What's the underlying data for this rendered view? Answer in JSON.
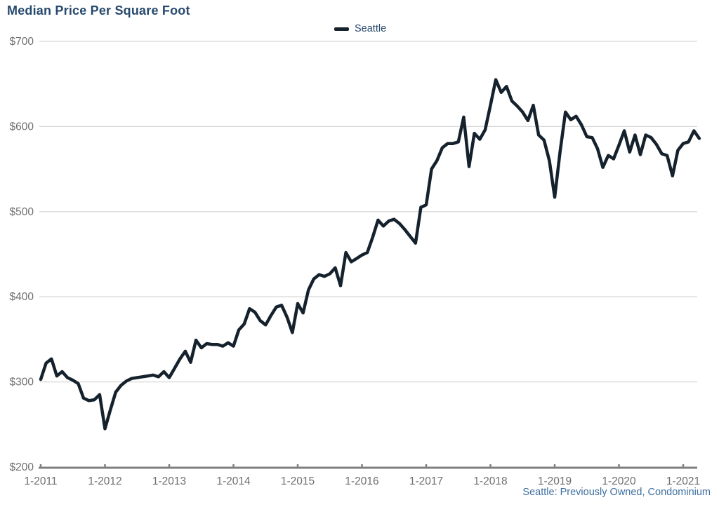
{
  "header": {
    "title": "Median Price Per Square Foot",
    "title_color": "#27496d"
  },
  "legend": {
    "label": "Seattle",
    "swatch_color": "#15222d",
    "text_color": "#27496d"
  },
  "footer": {
    "note": "Seattle: Previously Owned, Condominium",
    "color": "#3e6f9f"
  },
  "chart_data": {
    "type": "line",
    "title": "Median Price Per Square Foot",
    "series": [
      {
        "name": "Seattle",
        "start_month": "2011-01",
        "end_month": "2021-04",
        "frequency": "monthly",
        "values": [
          303,
          322,
          327,
          307,
          312,
          305,
          302,
          298,
          281,
          278,
          279,
          285,
          245,
          267,
          288,
          296,
          301,
          304,
          305,
          306,
          307,
          308,
          306,
          312,
          305,
          316,
          327,
          336,
          323,
          349,
          340,
          345,
          344,
          344,
          342,
          346,
          342,
          361,
          368,
          386,
          382,
          372,
          367,
          378,
          388,
          390,
          376,
          358,
          392,
          381,
          408,
          421,
          426,
          424,
          427,
          434,
          413,
          452,
          441,
          445,
          449,
          452,
          470,
          490,
          483,
          489,
          491,
          486,
          479,
          471,
          463,
          505,
          508,
          550,
          560,
          575,
          580,
          580,
          582,
          611,
          553,
          592,
          585,
          596,
          625,
          655,
          640,
          647,
          630,
          624,
          617,
          607,
          625,
          590,
          584,
          560,
          517,
          570,
          617,
          608,
          612,
          602,
          588,
          587,
          574,
          552,
          566,
          562,
          578,
          595,
          570,
          590,
          567,
          590,
          587,
          579,
          568,
          566,
          542,
          572,
          580,
          582,
          595,
          586
        ]
      }
    ],
    "x_tick_labels": [
      "1-2011",
      "1-2012",
      "1-2013",
      "1-2014",
      "1-2015",
      "1-2016",
      "1-2017",
      "1-2018",
      "1-2019",
      "1-2020",
      "1-2021"
    ],
    "y_tick_labels": [
      "$200",
      "$300",
      "$400",
      "$500",
      "$600",
      "$700"
    ],
    "y_ticks": [
      200,
      300,
      400,
      500,
      600,
      700
    ],
    "ylim": [
      200,
      700
    ],
    "grid": "horizontal-only",
    "legend_position": "top-center",
    "line_color": "#15222d",
    "grid_color": "#d8d8d8",
    "axis_color": "#7f7f7f",
    "tick_label_color": "#6f6f6f"
  }
}
